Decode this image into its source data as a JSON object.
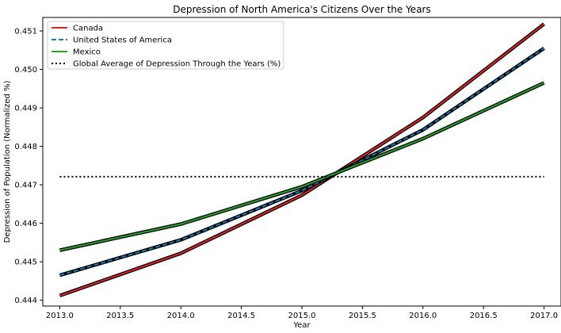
{
  "chart_data": {
    "type": "line",
    "title": "Depression of North America's Citizens Over the Years",
    "xlabel": "Year",
    "ylabel": "Depression of Population (Normalized %)",
    "x": [
      2013,
      2014,
      2015,
      2016,
      2017
    ],
    "xlim": [
      2012.86,
      2017.14
    ],
    "ylim": [
      0.44385,
      0.45135
    ],
    "xticks": [
      "2013.0",
      "2013.5",
      "2014.0",
      "2014.5",
      "2015.0",
      "2015.5",
      "2016.0",
      "2016.5",
      "2017.0"
    ],
    "yticks": [
      "0.444",
      "0.445",
      "0.446",
      "0.447",
      "0.448",
      "0.449",
      "0.450",
      "0.451"
    ],
    "grid": false,
    "legend_position": "top-left",
    "series": [
      {
        "name": "Canada",
        "color": "#d62728",
        "style": "solid",
        "values": [
          0.44412,
          0.44522,
          0.44673,
          0.44875,
          0.45118
        ]
      },
      {
        "name": "United States of America",
        "color": "#1f77b4",
        "style": "dashed",
        "values": [
          0.44465,
          0.44557,
          0.44685,
          0.44843,
          0.45055
        ]
      },
      {
        "name": "Mexico",
        "color": "#2ca02c",
        "style": "solid",
        "values": [
          0.4453,
          0.44598,
          0.44695,
          0.4482,
          0.44965
        ]
      },
      {
        "name": "Global Average of Depression Through the Years (%)",
        "color": "#000000",
        "style": "dotted",
        "values": [
          0.44721,
          0.44721,
          0.44721,
          0.44721,
          0.44721
        ]
      }
    ]
  }
}
